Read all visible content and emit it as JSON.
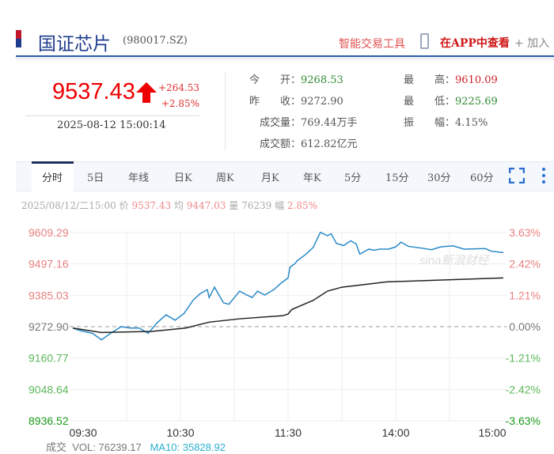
{
  "header": {
    "title": "国证芯片",
    "code": "(980017.SZ)",
    "tools_label": "智能交易工具",
    "app_label": "在APP中查看",
    "add_label": "+ 加入"
  },
  "quote": {
    "price": "9537.43",
    "change": "+264.53",
    "change_pct": "+2.85%",
    "datetime": "2025-08-12 15:00:14",
    "direction": "up",
    "stats": [
      {
        "label": "今　　开：",
        "value": "9268.53",
        "color": "green"
      },
      {
        "label": "昨　　收：",
        "value": "9272.90",
        "color": "neutral"
      },
      {
        "label": "成交量：",
        "value": "769.44万手",
        "color": "neutral"
      },
      {
        "label": "成交额：",
        "value": "612.82亿元",
        "color": "neutral"
      },
      {
        "label": "最　　高：",
        "value": "9610.09",
        "color": "red"
      },
      {
        "label": "最　　低：",
        "value": "9225.69",
        "color": "green"
      },
      {
        "label": "振　　幅：",
        "value": "4.15%",
        "color": "neutral"
      }
    ]
  },
  "tabs": [
    "分时",
    "5日",
    "年线",
    "日K",
    "周K",
    "月K",
    "年K",
    "5分",
    "15分",
    "30分",
    "60分"
  ],
  "active_tab": "分时",
  "info": {
    "date": "2025/08/12/二15:00",
    "price_label": "价",
    "price": "9537.43",
    "avg_label": "均",
    "avg": "9447.03",
    "vol_label": "量",
    "vol": "76239",
    "amp_label": "幅",
    "amp": "2.85%"
  },
  "watermark": "sina新浪财经",
  "chart_data": {
    "type": "line",
    "prev_close": 9272.9,
    "ylim": [
      8936.52,
      9609.29
    ],
    "y_ticks": [
      "9609.29",
      "9497.16",
      "9385.03",
      "9272.90",
      "9160.77",
      "9048.64",
      "8936.52"
    ],
    "y_pct_ticks": [
      "3.63%",
      "2.42%",
      "1.21%",
      "0.00%",
      "-1.21%",
      "-2.42%",
      "-3.63%"
    ],
    "x_ticks": [
      "09:30",
      "10:30",
      "11:30",
      "14:00",
      "15:00"
    ],
    "series": [
      {
        "color": "#2a8ac8",
        "points": [
          [
            "09:30",
            9268
          ],
          [
            "09:34",
            9259
          ],
          [
            "09:41",
            9249
          ],
          [
            "09:46",
            9226
          ],
          [
            "09:51",
            9249
          ],
          [
            "09:57",
            9273
          ],
          [
            "10:02",
            9268
          ],
          [
            "10:07",
            9268
          ],
          [
            "10:12",
            9249
          ],
          [
            "10:17",
            9287
          ],
          [
            "10:22",
            9315
          ],
          [
            "10:27",
            9296
          ],
          [
            "10:32",
            9320
          ],
          [
            "10:37",
            9367
          ],
          [
            "10:41",
            9391
          ],
          [
            "10:45",
            9405
          ],
          [
            "10:46",
            9377
          ],
          [
            "10:49",
            9414
          ],
          [
            "10:54",
            9358
          ],
          [
            "10:57",
            9353
          ],
          [
            "11:03",
            9400
          ],
          [
            "11:07",
            9386
          ],
          [
            "11:10",
            9377
          ],
          [
            "11:13",
            9400
          ],
          [
            "11:17",
            9386
          ],
          [
            "11:22",
            9405
          ],
          [
            "11:26",
            9428
          ],
          [
            "11:30",
            9447
          ],
          [
            "13:01",
            9485
          ],
          [
            "13:04",
            9499
          ],
          [
            "13:05",
            9508
          ],
          [
            "13:10",
            9532
          ],
          [
            "13:14",
            9556
          ],
          [
            "13:18",
            9610
          ],
          [
            "13:22",
            9598
          ],
          [
            "13:24",
            9605
          ],
          [
            "13:27",
            9570
          ],
          [
            "13:31",
            9563
          ],
          [
            "13:35",
            9580
          ],
          [
            "13:38",
            9568
          ],
          [
            "13:40",
            9532
          ],
          [
            "13:45",
            9550
          ],
          [
            "13:48",
            9546
          ],
          [
            "13:51",
            9550
          ],
          [
            "13:56",
            9550
          ],
          [
            "14:00",
            9558
          ],
          [
            "14:03",
            9575
          ],
          [
            "14:07",
            9560
          ],
          [
            "14:14",
            9554
          ],
          [
            "14:20",
            9548
          ],
          [
            "14:25",
            9558
          ],
          [
            "14:32",
            9562
          ],
          [
            "14:38",
            9550
          ],
          [
            "14:50",
            9552
          ],
          [
            "14:53",
            9543
          ],
          [
            "15:00",
            9537.43
          ]
        ]
      },
      {
        "color": "#222222",
        "points": [
          [
            "09:30",
            9268
          ],
          [
            "09:46",
            9252
          ],
          [
            "10:14",
            9256
          ],
          [
            "10:33",
            9268
          ],
          [
            "10:46",
            9289
          ],
          [
            "11:03",
            9301
          ],
          [
            "11:27",
            9312
          ],
          [
            "11:30",
            9318
          ],
          [
            "13:02",
            9334
          ],
          [
            "13:14",
            9367
          ],
          [
            "13:22",
            9400
          ],
          [
            "13:30",
            9414
          ],
          [
            "13:55",
            9433
          ],
          [
            "15:00",
            9447.03
          ]
        ]
      }
    ]
  },
  "volume": {
    "label": "成交",
    "vol": "VOL: 76239.17",
    "ma10": "MA10: 35828.92"
  }
}
